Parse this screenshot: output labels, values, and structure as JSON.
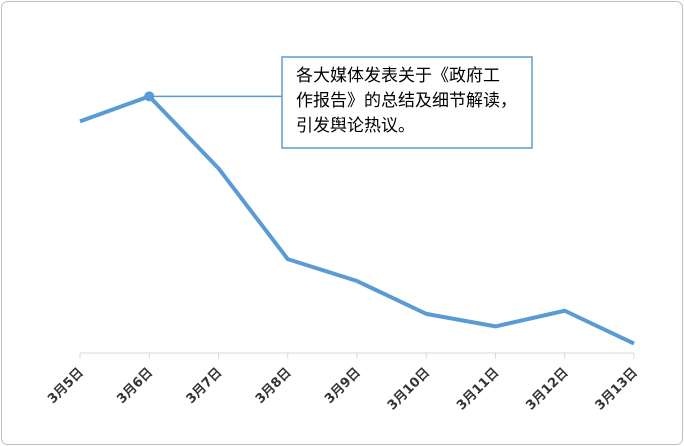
{
  "chart_data": {
    "type": "line",
    "categories": [
      "3月5日",
      "3月6日",
      "3月7日",
      "3月8日",
      "3月9日",
      "3月10日",
      "3月11日",
      "3月12日",
      "3月13日"
    ],
    "values": [
      74,
      82,
      59,
      30,
      23,
      12.5,
      8.5,
      13.5,
      3
    ],
    "color": "#5b9bd5",
    "ylim": [
      0,
      100
    ],
    "annotation": {
      "index": 1,
      "lines": [
        "各大媒体发表关于《政府工",
        "作报告》的总结及细节解读，",
        "引发舆论热议。"
      ]
    }
  }
}
